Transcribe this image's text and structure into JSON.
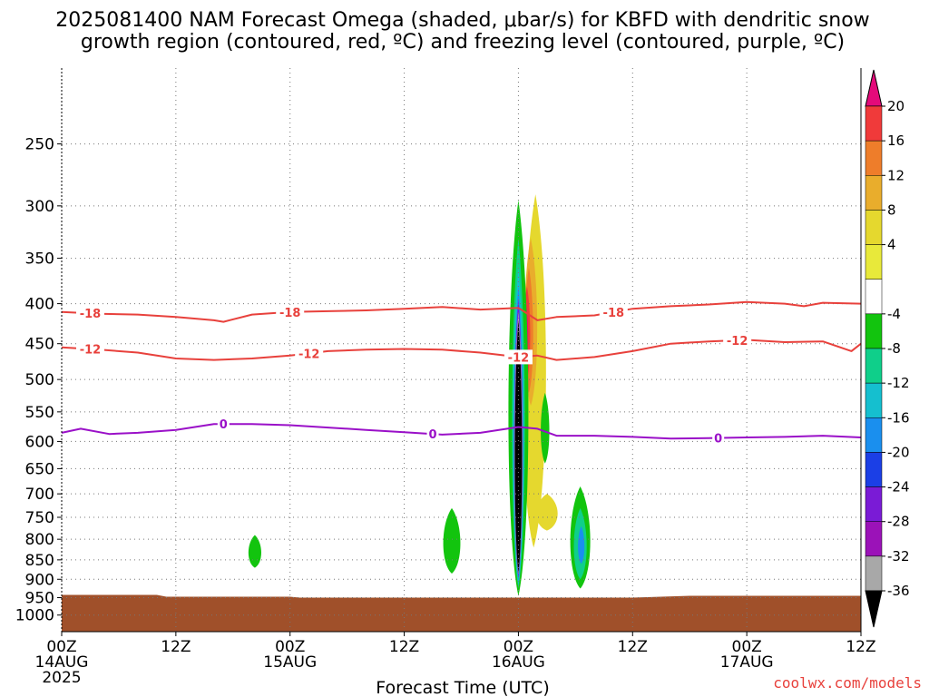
{
  "page": {
    "title_line1": "2025081400 NAM Forecast Omega (shaded, μbar/s) for KBFD with dendritic snow",
    "title_line2": "growth region (contoured, red, ºC) and freezing level (contoured, purple, ºC)",
    "credit": "coolwx.com/models",
    "colors": {
      "dgz_contour": "#e8413c",
      "freezing_contour": "#9a10c8",
      "ground": "#a0502a",
      "grid": "#777777"
    }
  },
  "chart_data": {
    "type": "time-height cross section",
    "xlabel": "Forecast Time (UTC)",
    "x_ticks": [
      {
        "hour": 0,
        "line1": "00Z",
        "line2": "14AUG",
        "line3": "2025"
      },
      {
        "hour": 12,
        "line1": "12Z",
        "line2": "",
        "line3": ""
      },
      {
        "hour": 24,
        "line1": "00Z",
        "line2": "15AUG",
        "line3": ""
      },
      {
        "hour": 36,
        "line1": "12Z",
        "line2": "",
        "line3": ""
      },
      {
        "hour": 48,
        "line1": "00Z",
        "line2": "16AUG",
        "line3": ""
      },
      {
        "hour": 60,
        "line1": "12Z",
        "line2": "",
        "line3": ""
      },
      {
        "hour": 72,
        "line1": "00Z",
        "line2": "17AUG",
        "line3": ""
      },
      {
        "hour": 84,
        "line1": "12Z",
        "line2": "",
        "line3": ""
      }
    ],
    "xlim": [
      0,
      84
    ],
    "y_axis": {
      "label": "",
      "scale": "log-pressure",
      "units": "hPa",
      "ylim": [
        1050,
        200
      ]
    },
    "y_ticks": [
      250,
      300,
      350,
      400,
      450,
      500,
      550,
      600,
      650,
      700,
      750,
      800,
      850,
      900,
      950,
      1000
    ],
    "grid": true,
    "surface_pressure_hpa": 945,
    "contours": [
      {
        "name": "-18",
        "color": "#e8413c",
        "hours": [
          0,
          4,
          8,
          12,
          16,
          17,
          20,
          24,
          28,
          32,
          36,
          40,
          44,
          48,
          50,
          52,
          56,
          60,
          64,
          68,
          72,
          76,
          78,
          80,
          84
        ],
        "pressures": [
          410,
          412,
          413,
          416,
          420,
          422,
          413,
          410,
          409,
          408,
          406,
          404,
          407,
          405,
          420,
          416,
          414,
          406,
          403,
          401,
          398,
          400,
          403,
          399,
          400
        ],
        "labels": [
          {
            "hour": 3,
            "text": "-18"
          },
          {
            "hour": 24,
            "text": "-18"
          },
          {
            "hour": 58,
            "text": "-18"
          }
        ]
      },
      {
        "name": "-12",
        "color": "#e8413c",
        "hours": [
          0,
          4,
          8,
          12,
          16,
          20,
          24,
          28,
          32,
          36,
          40,
          44,
          48,
          50,
          52,
          56,
          60,
          64,
          68,
          72,
          76,
          80,
          83,
          84
        ],
        "pressures": [
          455,
          458,
          462,
          470,
          472,
          470,
          466,
          460,
          458,
          457,
          458,
          462,
          468,
          466,
          472,
          468,
          460,
          450,
          447,
          445,
          448,
          447,
          460,
          450
        ],
        "labels": [
          {
            "hour": 3,
            "text": "-12"
          },
          {
            "hour": 26,
            "text": "-12"
          },
          {
            "hour": 48,
            "text": "-12"
          },
          {
            "hour": 71,
            "text": "-12"
          }
        ]
      },
      {
        "name": "0",
        "color": "#9a10c8",
        "hours": [
          0,
          2,
          5,
          8,
          12,
          16,
          20,
          24,
          28,
          32,
          36,
          40,
          44,
          48,
          50,
          52,
          56,
          60,
          64,
          68,
          72,
          76,
          80,
          84
        ],
        "pressures": [
          585,
          578,
          587,
          585,
          580,
          570,
          570,
          572,
          576,
          580,
          584,
          588,
          585,
          575,
          578,
          590,
          590,
          592,
          595,
          594,
          593,
          592,
          590,
          593
        ],
        "labels": [
          {
            "hour": 17,
            "text": "0"
          },
          {
            "hour": 39,
            "text": "0"
          },
          {
            "hour": 69,
            "text": "0"
          }
        ]
      }
    ],
    "omega_features": [
      {
        "name": "upward motion core",
        "peak_hour": 48.5,
        "min_omega": "< -36",
        "top_hpa": 300,
        "bottom_hpa": 910
      },
      {
        "name": "downward motion band",
        "peak_hour": 49.5,
        "max_omega": "20",
        "top_hpa": 290,
        "bottom_hpa": 820
      },
      {
        "name": "weak ascent",
        "peak_hour": 20.5,
        "omega": "-4 to -8",
        "top_hpa": 795,
        "bottom_hpa": 870
      },
      {
        "name": "weak ascent",
        "peak_hour": 41,
        "omega": "-4 to -8",
        "top_hpa": 730,
        "bottom_hpa": 880
      },
      {
        "name": "moderate ascent",
        "peak_hour": 54.5,
        "omega": "-4 to -24",
        "top_hpa": 690,
        "bottom_hpa": 920
      }
    ],
    "colorbar": {
      "labels": [
        "20",
        "16",
        "12",
        "8",
        "4",
        "-4",
        "-8",
        "-12",
        "-16",
        "-20",
        "-24",
        "-28",
        "-32",
        "-36"
      ],
      "colors": [
        "#e40a7a",
        "#f03a3a",
        "#ee7d2a",
        "#e9ad2c",
        "#e5d82e",
        "#e8e93a",
        "#ffffff",
        "#12c40e",
        "#0fcf8a",
        "#15bfcf",
        "#1a8fee",
        "#1b3fe6",
        "#7a1bd6",
        "#9b12b8",
        "#a8a8a8",
        "#000000"
      ]
    }
  }
}
